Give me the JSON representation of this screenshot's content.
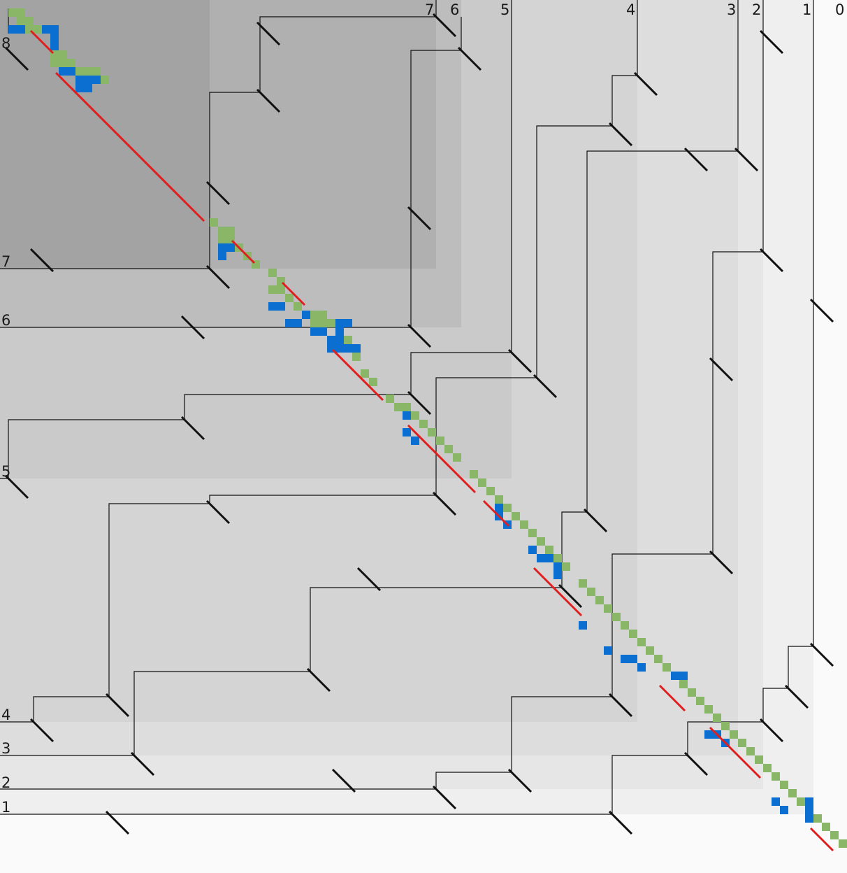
{
  "colors": {
    "background": "#fafafa",
    "level_fill": [
      "#efefef",
      "#e6e6e6",
      "#dddddd",
      "#d4d4d4",
      "#cacaca",
      "#bdbdbd",
      "#b0b0b0",
      "#a3a3a3"
    ],
    "frame_line": "#111111",
    "tick": "#111111",
    "cell_green": "#89b767",
    "cell_blue": "#0a6fd0",
    "diagonal_red": "#e01e1e"
  },
  "labels": {
    "top": [
      "0",
      "1",
      "2",
      "3",
      "4",
      "5",
      "6",
      "7"
    ],
    "left": [
      "1",
      "2",
      "3",
      "4",
      "5",
      "6",
      "7",
      "8"
    ]
  }
}
